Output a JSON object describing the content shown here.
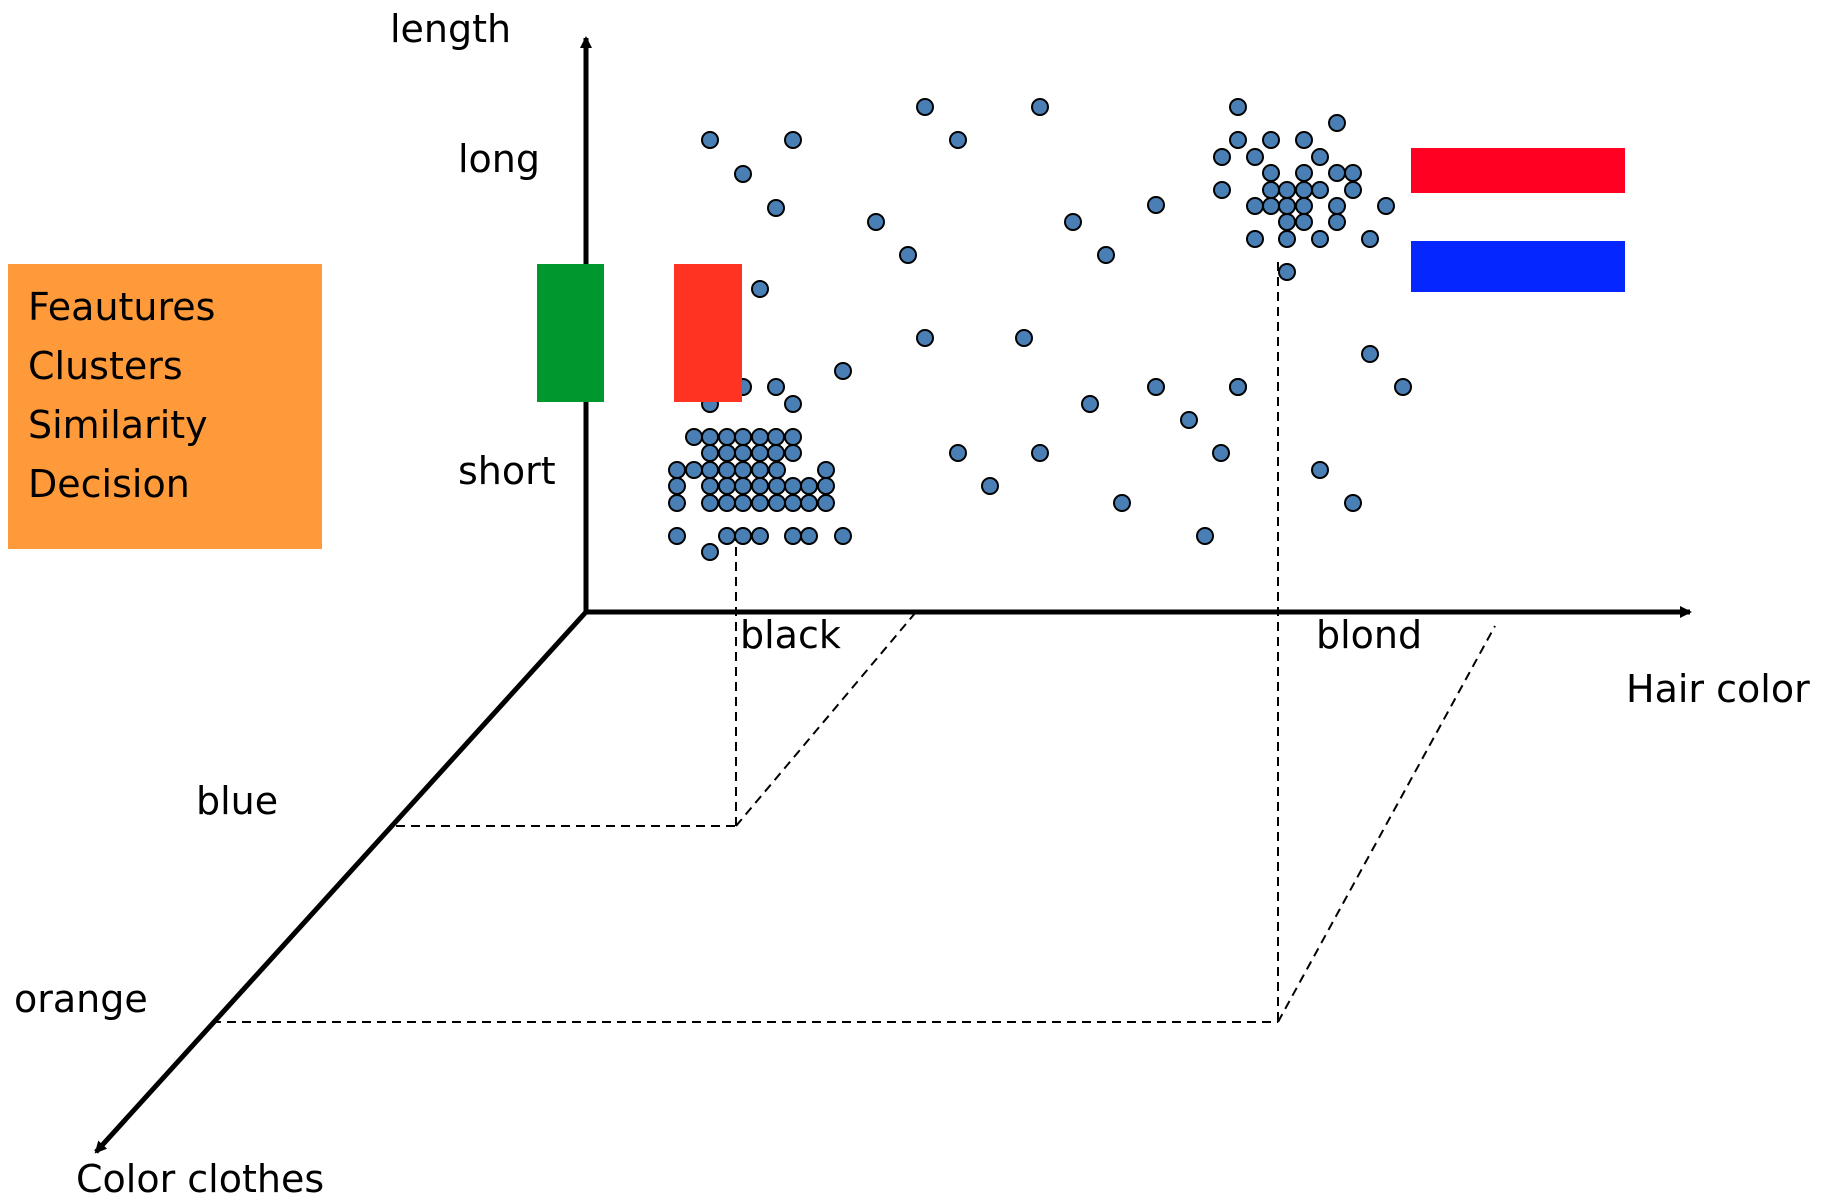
{
  "legend_box": {
    "color": "#ff9a3a",
    "lines": [
      "Feautures",
      "Clusters",
      "Similarity",
      "Decision"
    ]
  },
  "axes": {
    "vertical": {
      "label": "length",
      "ticks": [
        "long",
        "short"
      ]
    },
    "horizontal": {
      "label": "Hair color",
      "ticks": [
        "black",
        "blond"
      ]
    },
    "depth": {
      "label": "Color clothes",
      "ticks": [
        "blue",
        "orange"
      ]
    }
  },
  "flags": {
    "italy": {
      "colors": [
        "#00972f",
        "#ff3322"
      ]
    },
    "netherlands": {
      "colors": [
        "#ff0022",
        "#0626ff"
      ]
    }
  },
  "dot_color": "#4a7fb5",
  "chart_data": {
    "type": "scatter",
    "title": "",
    "xlabel": "Hair color",
    "ylabel": "length",
    "zlabel": "Color clothes",
    "x_categories": [
      "black",
      "blond"
    ],
    "y_categories": [
      "long",
      "short"
    ],
    "z_categories": [
      "blue",
      "orange"
    ],
    "clusters": [
      {
        "hair": "black",
        "length": "short",
        "clothes": "blue"
      },
      {
        "hair": "blond",
        "length": "long",
        "clothes": "orange"
      }
    ]
  }
}
